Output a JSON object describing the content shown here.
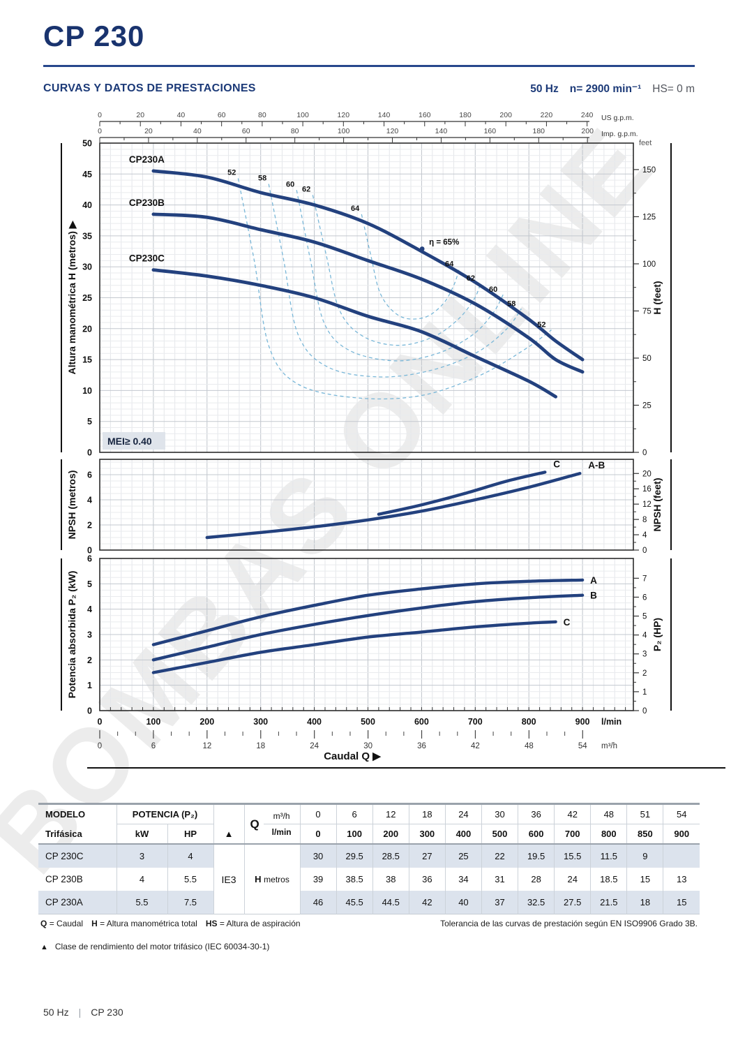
{
  "page": {
    "title": "CP 230",
    "watermark": "BOMBAS ONLINE",
    "footer_left": "50 Hz",
    "footer_sep": "|",
    "footer_right": "CP 230"
  },
  "header": {
    "section_title": "CURVAS Y DATOS DE PRESTACIONES",
    "frequency": "50 Hz",
    "speed": "n= 2900 min⁻¹",
    "suction": "HS= 0 m"
  },
  "chart_data": [
    {
      "id": "head-flow-curves",
      "type": "line",
      "x_unit": "l/min",
      "ylabel_left": "Altura manométrica H (metros)",
      "ylabel_arrow": "▶",
      "ylabel_right": "H (feet)",
      "right_unit_note": "feet",
      "xlim": [
        0,
        995
      ],
      "ylim": [
        0,
        50
      ],
      "y_ticks_left": [
        0,
        5,
        10,
        15,
        20,
        25,
        30,
        35,
        40,
        45,
        50
      ],
      "y_ticks_right_feet": [
        0,
        25,
        50,
        75,
        100,
        125,
        150
      ],
      "top_axis_us": {
        "label": "US g.p.m.",
        "ticks": [
          0,
          20,
          40,
          60,
          80,
          100,
          120,
          140,
          160,
          180,
          200,
          220,
          240
        ]
      },
      "top_axis_imp": {
        "label": "Imp. g.p.m.",
        "ticks": [
          0,
          20,
          40,
          60,
          80,
          100,
          120,
          140,
          160,
          180,
          200
        ]
      },
      "mei_label": "MEI≥ 0.40",
      "series": [
        {
          "name": "CP230A",
          "points": [
            [
              100,
              45.5
            ],
            [
              200,
              44.5
            ],
            [
              300,
              42
            ],
            [
              400,
              40
            ],
            [
              500,
              37
            ],
            [
              600,
              32.5
            ],
            [
              700,
              27.5
            ],
            [
              800,
              21.5
            ],
            [
              850,
              18
            ],
            [
              900,
              15
            ]
          ]
        },
        {
          "name": "CP230B",
          "points": [
            [
              100,
              38.5
            ],
            [
              200,
              38
            ],
            [
              300,
              36
            ],
            [
              400,
              34
            ],
            [
              500,
              31
            ],
            [
              600,
              28
            ],
            [
              700,
              24
            ],
            [
              800,
              18.5
            ],
            [
              850,
              15
            ],
            [
              900,
              13
            ]
          ]
        },
        {
          "name": "CP230C",
          "points": [
            [
              100,
              29.5
            ],
            [
              200,
              28.5
            ],
            [
              300,
              27
            ],
            [
              400,
              25
            ],
            [
              500,
              22
            ],
            [
              600,
              19.5
            ],
            [
              700,
              15.5
            ],
            [
              800,
              11.5
            ],
            [
              850,
              9
            ]
          ]
        }
      ],
      "efficiency_contours": [
        {
          "label": "52",
          "points": [
            [
              258,
              44.3
            ],
            [
              288,
              31
            ],
            [
              316,
              17
            ],
            [
              370,
              11
            ],
            [
              480,
              8.8
            ],
            [
              600,
              9.2
            ],
            [
              710,
              12.5
            ],
            [
              795,
              16.8
            ],
            [
              842,
              19.8
            ]
          ]
        },
        {
          "label": "58",
          "points": [
            [
              315,
              43.4
            ],
            [
              343,
              31
            ],
            [
              370,
              19
            ],
            [
              425,
              13.8
            ],
            [
              520,
              12.2
            ],
            [
              615,
              13.2
            ],
            [
              700,
              16
            ],
            [
              757,
              19.8
            ],
            [
              786,
              23.2
            ]
          ]
        },
        {
          "label": "60",
          "points": [
            [
              367,
              42.4
            ],
            [
              393,
              31
            ],
            [
              418,
              21
            ],
            [
              465,
              16.5
            ],
            [
              550,
              14.8
            ],
            [
              630,
              16
            ],
            [
              695,
              19
            ],
            [
              733,
              22.5
            ],
            [
              752,
              25.5
            ]
          ]
        },
        {
          "label": "62",
          "points": [
            [
              397,
              41.6
            ],
            [
              422,
              32
            ],
            [
              447,
              23
            ],
            [
              490,
              18.8
            ],
            [
              555,
              17.3
            ],
            [
              620,
              18.6
            ],
            [
              668,
              21.5
            ],
            [
              698,
              24.8
            ],
            [
              710,
              27.3
            ]
          ]
        },
        {
          "label": "64",
          "points": [
            [
              488,
              38.5
            ],
            [
              505,
              32
            ],
            [
              524,
              25.5
            ],
            [
              560,
              22
            ],
            [
              605,
              21.8
            ],
            [
              640,
              24
            ],
            [
              660,
              27
            ],
            [
              670,
              29.6
            ]
          ]
        }
      ],
      "bep": {
        "label": "η = 65%",
        "q": 601,
        "h": 32.9
      }
    },
    {
      "id": "npsh",
      "type": "line",
      "ylabel_left": "NPSH (metros)",
      "ylabel_right": "NPSH (feet)",
      "ylim": [
        0,
        7.2
      ],
      "y_ticks_left": [
        0,
        2,
        4,
        6
      ],
      "y_ticks_right_feet": [
        0,
        4,
        8,
        12,
        16,
        20
      ],
      "series": [
        {
          "name": "A-B",
          "points": [
            [
              200,
              1.0
            ],
            [
              300,
              1.4
            ],
            [
              400,
              1.85
            ],
            [
              500,
              2.4
            ],
            [
              600,
              3.1
            ],
            [
              700,
              4.0
            ],
            [
              800,
              5.0
            ],
            [
              895,
              6.1
            ]
          ]
        },
        {
          "name": "C",
          "points": [
            [
              520,
              2.85
            ],
            [
              600,
              3.6
            ],
            [
              680,
              4.5
            ],
            [
              760,
              5.5
            ],
            [
              830,
              6.2
            ]
          ]
        }
      ]
    },
    {
      "id": "p2-power",
      "type": "line",
      "ylabel_left": "Potencia absorbida P₂ (kW)",
      "ylabel_right": "P₂ (HP)",
      "ylim": [
        0,
        6
      ],
      "y_ticks_left": [
        0,
        1,
        2,
        3,
        4,
        5,
        6
      ],
      "y_ticks_right_hp": [
        0,
        1,
        2,
        3,
        4,
        5,
        6,
        7
      ],
      "series": [
        {
          "name": "A",
          "points": [
            [
              100,
              2.6
            ],
            [
              200,
              3.15
            ],
            [
              300,
              3.7
            ],
            [
              400,
              4.15
            ],
            [
              500,
              4.55
            ],
            [
              600,
              4.8
            ],
            [
              700,
              5.0
            ],
            [
              800,
              5.1
            ],
            [
              900,
              5.15
            ]
          ]
        },
        {
          "name": "B",
          "points": [
            [
              100,
              2.0
            ],
            [
              200,
              2.5
            ],
            [
              300,
              3.0
            ],
            [
              400,
              3.4
            ],
            [
              500,
              3.75
            ],
            [
              600,
              4.05
            ],
            [
              700,
              4.3
            ],
            [
              800,
              4.45
            ],
            [
              900,
              4.55
            ]
          ]
        },
        {
          "name": "C",
          "points": [
            [
              100,
              1.5
            ],
            [
              200,
              1.9
            ],
            [
              300,
              2.3
            ],
            [
              400,
              2.6
            ],
            [
              500,
              2.9
            ],
            [
              600,
              3.1
            ],
            [
              700,
              3.3
            ],
            [
              800,
              3.45
            ],
            [
              850,
              3.5
            ]
          ]
        }
      ]
    }
  ],
  "x_axis": {
    "lmin_label": "l/min",
    "lmin_ticks": [
      0,
      100,
      200,
      300,
      400,
      500,
      600,
      700,
      800,
      900
    ],
    "m3h_label": "m³/h",
    "m3h_ticks": [
      0,
      6,
      12,
      18,
      24,
      30,
      36,
      42,
      48,
      54
    ],
    "caudal_label": "Caudal Q  ▶"
  },
  "table": {
    "headers": {
      "modelo": "MODELO",
      "trifasica": "Trifásica",
      "potencia": "POTENCIA (P₂)",
      "kw": "kW",
      "hp": "HP",
      "triangle": "▲",
      "q": "Q",
      "m3h": "m³/h",
      "lmin": "l/min",
      "ie3": "IE3",
      "h": "H",
      "metros": "metros"
    },
    "m3h_values": [
      "0",
      "6",
      "12",
      "18",
      "24",
      "30",
      "36",
      "42",
      "48",
      "51",
      "54"
    ],
    "lmin_values": [
      "0",
      "100",
      "200",
      "300",
      "400",
      "500",
      "600",
      "700",
      "800",
      "850",
      "900"
    ],
    "rows": [
      {
        "model": "CP 230C",
        "kw": "3",
        "hp": "4",
        "shaded": true,
        "h": [
          "30",
          "29.5",
          "28.5",
          "27",
          "25",
          "22",
          "19.5",
          "15.5",
          "11.5",
          "9",
          ""
        ]
      },
      {
        "model": "CP 230B",
        "kw": "4",
        "hp": "5.5",
        "shaded": false,
        "h": [
          "39",
          "38.5",
          "38",
          "36",
          "34",
          "31",
          "28",
          "24",
          "18.5",
          "15",
          "13"
        ]
      },
      {
        "model": "CP 230A",
        "kw": "5.5",
        "hp": "7.5",
        "shaded": true,
        "h": [
          "46",
          "45.5",
          "44.5",
          "42",
          "40",
          "37",
          "32.5",
          "27.5",
          "21.5",
          "18",
          "15"
        ]
      }
    ]
  },
  "footnotes": {
    "q_key": "Q",
    "q_val": "= Caudal",
    "h_key": "H",
    "h_val": "= Altura manométrica total",
    "hs_key": "HS",
    "hs_val": "= Altura de aspiración",
    "tolerance": "Tolerancia de las curvas de prestación según EN ISO9906 Grado 3B.",
    "triangle_symbol": "▲",
    "triangle_note": "Clase de rendimiento del motor trifásico (IEC 60034-30-1)"
  }
}
